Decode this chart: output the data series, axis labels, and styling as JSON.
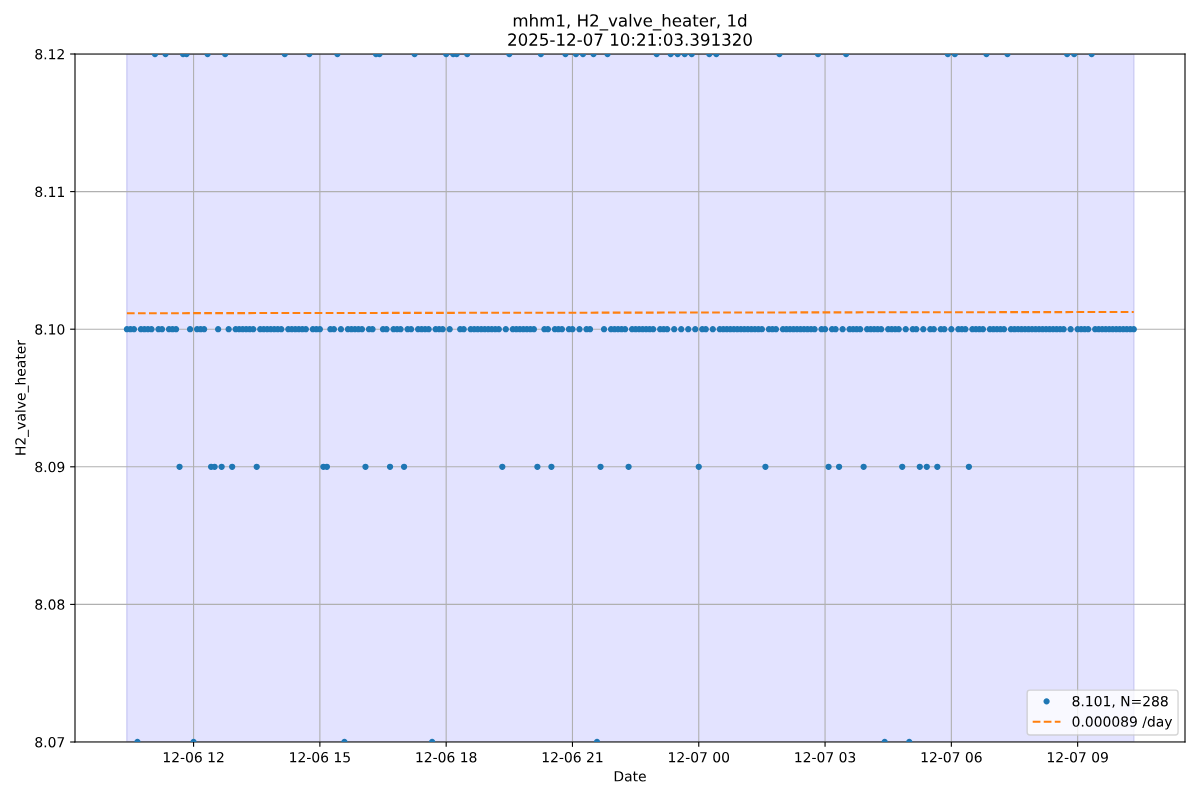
{
  "chart_data": {
    "type": "scatter",
    "title": "mhm1, H2_valve_heater, 1d\n2025-12-07 10:21:03.391320",
    "xlabel": "Date",
    "ylabel": "H2_valve_heater",
    "xlim": [
      "2025-12-06T09:11",
      "2025-12-07T11:33"
    ],
    "ylim": [
      8.07,
      8.12
    ],
    "xticks": [
      {
        "value": "2025-12-06T12:00",
        "label": "12-06 12"
      },
      {
        "value": "2025-12-06T15:00",
        "label": "12-06 15"
      },
      {
        "value": "2025-12-06T18:00",
        "label": "12-06 18"
      },
      {
        "value": "2025-12-06T21:00",
        "label": "12-06 21"
      },
      {
        "value": "2025-12-07T00:00",
        "label": "12-07 00"
      },
      {
        "value": "2025-12-07T03:00",
        "label": "12-07 03"
      },
      {
        "value": "2025-12-07T06:00",
        "label": "12-07 06"
      },
      {
        "value": "2025-12-07T09:00",
        "label": "12-07 09"
      }
    ],
    "yticks": [
      {
        "value": 8.07,
        "label": "8.07"
      },
      {
        "value": 8.08,
        "label": "8.08"
      },
      {
        "value": 8.09,
        "label": "8.09"
      },
      {
        "value": 8.1,
        "label": "8.10"
      },
      {
        "value": 8.11,
        "label": "8.11"
      },
      {
        "value": 8.12,
        "label": "8.12"
      }
    ],
    "grid": true,
    "legend": "bottom right",
    "bands": [
      {
        "axis": "x",
        "from": "2025-12-06T10:25",
        "to": "2025-12-07T10:20",
        "color": "#e3e3ff"
      }
    ],
    "x": [
      "2025-12-06T10:25",
      "2025-12-06T10:30",
      "2025-12-06T10:35",
      "2025-12-06T10:40",
      "2025-12-06T10:45",
      "2025-12-06T10:50",
      "2025-12-06T10:55",
      "2025-12-06T11:00",
      "2025-12-06T11:05",
      "2025-12-06T11:10",
      "2025-12-06T11:15",
      "2025-12-06T11:20",
      "2025-12-06T11:25",
      "2025-12-06T11:30",
      "2025-12-06T11:35",
      "2025-12-06T11:40",
      "2025-12-06T11:45",
      "2025-12-06T11:50",
      "2025-12-06T11:55",
      "2025-12-06T12:00",
      "2025-12-06T12:05",
      "2025-12-06T12:10",
      "2025-12-06T12:15",
      "2025-12-06T12:20",
      "2025-12-06T12:25",
      "2025-12-06T12:30",
      "2025-12-06T12:35",
      "2025-12-06T12:40",
      "2025-12-06T12:45",
      "2025-12-06T12:50",
      "2025-12-06T12:55",
      "2025-12-06T13:00",
      "2025-12-06T13:05",
      "2025-12-06T13:10",
      "2025-12-06T13:15",
      "2025-12-06T13:20",
      "2025-12-06T13:25",
      "2025-12-06T13:30",
      "2025-12-06T13:35",
      "2025-12-06T13:40",
      "2025-12-06T13:45",
      "2025-12-06T13:50",
      "2025-12-06T13:55",
      "2025-12-06T14:00",
      "2025-12-06T14:05",
      "2025-12-06T14:10",
      "2025-12-06T14:15",
      "2025-12-06T14:20",
      "2025-12-06T14:25",
      "2025-12-06T14:30",
      "2025-12-06T14:35",
      "2025-12-06T14:40",
      "2025-12-06T14:45",
      "2025-12-06T14:50",
      "2025-12-06T14:55",
      "2025-12-06T15:00",
      "2025-12-06T15:05",
      "2025-12-06T15:10",
      "2025-12-06T15:15",
      "2025-12-06T15:20",
      "2025-12-06T15:25",
      "2025-12-06T15:30",
      "2025-12-06T15:35",
      "2025-12-06T15:40",
      "2025-12-06T15:45",
      "2025-12-06T15:50",
      "2025-12-06T15:55",
      "2025-12-06T16:00",
      "2025-12-06T16:05",
      "2025-12-06T16:10",
      "2025-12-06T16:15",
      "2025-12-06T16:20",
      "2025-12-06T16:25",
      "2025-12-06T16:30",
      "2025-12-06T16:35",
      "2025-12-06T16:40",
      "2025-12-06T16:45",
      "2025-12-06T16:50",
      "2025-12-06T16:55",
      "2025-12-06T17:00",
      "2025-12-06T17:05",
      "2025-12-06T17:10",
      "2025-12-06T17:15",
      "2025-12-06T17:20",
      "2025-12-06T17:25",
      "2025-12-06T17:30",
      "2025-12-06T17:35",
      "2025-12-06T17:40",
      "2025-12-06T17:45",
      "2025-12-06T17:50",
      "2025-12-06T17:55",
      "2025-12-06T18:00",
      "2025-12-06T18:05",
      "2025-12-06T18:10",
      "2025-12-06T18:15",
      "2025-12-06T18:20",
      "2025-12-06T18:25",
      "2025-12-06T18:30",
      "2025-12-06T18:35",
      "2025-12-06T18:40",
      "2025-12-06T18:45",
      "2025-12-06T18:50",
      "2025-12-06T18:55",
      "2025-12-06T19:00",
      "2025-12-06T19:05",
      "2025-12-06T19:10",
      "2025-12-06T19:15",
      "2025-12-06T19:20",
      "2025-12-06T19:25",
      "2025-12-06T19:30",
      "2025-12-06T19:35",
      "2025-12-06T19:40",
      "2025-12-06T19:45",
      "2025-12-06T19:50",
      "2025-12-06T19:55",
      "2025-12-06T20:00",
      "2025-12-06T20:05",
      "2025-12-06T20:10",
      "2025-12-06T20:15",
      "2025-12-06T20:20",
      "2025-12-06T20:25",
      "2025-12-06T20:30",
      "2025-12-06T20:35",
      "2025-12-06T20:40",
      "2025-12-06T20:45",
      "2025-12-06T20:50",
      "2025-12-06T20:55",
      "2025-12-06T21:00",
      "2025-12-06T21:05",
      "2025-12-06T21:10",
      "2025-12-06T21:15",
      "2025-12-06T21:20",
      "2025-12-06T21:25",
      "2025-12-06T21:30",
      "2025-12-06T21:35",
      "2025-12-06T21:40",
      "2025-12-06T21:45",
      "2025-12-06T21:50",
      "2025-12-06T21:55",
      "2025-12-06T22:00",
      "2025-12-06T22:05",
      "2025-12-06T22:10",
      "2025-12-06T22:15",
      "2025-12-06T22:20",
      "2025-12-06T22:25",
      "2025-12-06T22:30",
      "2025-12-06T22:35",
      "2025-12-06T22:40",
      "2025-12-06T22:45",
      "2025-12-06T22:50",
      "2025-12-06T22:55",
      "2025-12-06T23:00",
      "2025-12-06T23:05",
      "2025-12-06T23:10",
      "2025-12-06T23:15",
      "2025-12-06T23:20",
      "2025-12-06T23:25",
      "2025-12-06T23:30",
      "2025-12-06T23:35",
      "2025-12-06T23:40",
      "2025-12-06T23:45",
      "2025-12-06T23:50",
      "2025-12-06T23:55",
      "2025-12-07T00:00",
      "2025-12-07T00:05",
      "2025-12-07T00:10",
      "2025-12-07T00:15",
      "2025-12-07T00:20",
      "2025-12-07T00:25",
      "2025-12-07T00:30",
      "2025-12-07T00:35",
      "2025-12-07T00:40",
      "2025-12-07T00:45",
      "2025-12-07T00:50",
      "2025-12-07T00:55",
      "2025-12-07T01:00",
      "2025-12-07T01:05",
      "2025-12-07T01:10",
      "2025-12-07T01:15",
      "2025-12-07T01:20",
      "2025-12-07T01:25",
      "2025-12-07T01:30",
      "2025-12-07T01:35",
      "2025-12-07T01:40",
      "2025-12-07T01:45",
      "2025-12-07T01:50",
      "2025-12-07T01:55",
      "2025-12-07T02:00",
      "2025-12-07T02:05",
      "2025-12-07T02:10",
      "2025-12-07T02:15",
      "2025-12-07T02:20",
      "2025-12-07T02:25",
      "2025-12-07T02:30",
      "2025-12-07T02:35",
      "2025-12-07T02:40",
      "2025-12-07T02:45",
      "2025-12-07T02:50",
      "2025-12-07T02:55",
      "2025-12-07T03:00",
      "2025-12-07T03:05",
      "2025-12-07T03:10",
      "2025-12-07T03:15",
      "2025-12-07T03:20",
      "2025-12-07T03:25",
      "2025-12-07T03:30",
      "2025-12-07T03:35",
      "2025-12-07T03:40",
      "2025-12-07T03:45",
      "2025-12-07T03:50",
      "2025-12-07T03:55",
      "2025-12-07T04:00",
      "2025-12-07T04:05",
      "2025-12-07T04:10",
      "2025-12-07T04:15",
      "2025-12-07T04:20",
      "2025-12-07T04:25",
      "2025-12-07T04:30",
      "2025-12-07T04:35",
      "2025-12-07T04:40",
      "2025-12-07T04:45",
      "2025-12-07T04:50",
      "2025-12-07T04:55",
      "2025-12-07T05:00",
      "2025-12-07T05:05",
      "2025-12-07T05:10",
      "2025-12-07T05:15",
      "2025-12-07T05:20",
      "2025-12-07T05:25",
      "2025-12-07T05:30",
      "2025-12-07T05:35",
      "2025-12-07T05:40",
      "2025-12-07T05:45",
      "2025-12-07T05:50",
      "2025-12-07T05:55",
      "2025-12-07T06:00",
      "2025-12-07T06:05",
      "2025-12-07T06:10",
      "2025-12-07T06:15",
      "2025-12-07T06:20",
      "2025-12-07T06:25",
      "2025-12-07T06:30",
      "2025-12-07T06:35",
      "2025-12-07T06:40",
      "2025-12-07T06:45",
      "2025-12-07T06:50",
      "2025-12-07T06:55",
      "2025-12-07T07:00",
      "2025-12-07T07:05",
      "2025-12-07T07:10",
      "2025-12-07T07:15",
      "2025-12-07T07:20",
      "2025-12-07T07:25",
      "2025-12-07T07:30",
      "2025-12-07T07:35",
      "2025-12-07T07:40",
      "2025-12-07T07:45",
      "2025-12-07T07:50",
      "2025-12-07T07:55",
      "2025-12-07T08:00",
      "2025-12-07T08:05",
      "2025-12-07T08:10",
      "2025-12-07T08:15",
      "2025-12-07T08:20",
      "2025-12-07T08:25",
      "2025-12-07T08:30",
      "2025-12-07T08:35",
      "2025-12-07T08:40",
      "2025-12-07T08:45",
      "2025-12-07T08:50",
      "2025-12-07T08:55",
      "2025-12-07T09:00",
      "2025-12-07T09:05",
      "2025-12-07T09:10",
      "2025-12-07T09:15",
      "2025-12-07T09:20",
      "2025-12-07T09:25",
      "2025-12-07T09:30",
      "2025-12-07T09:35",
      "2025-12-07T09:40",
      "2025-12-07T09:45",
      "2025-12-07T09:50",
      "2025-12-07T09:55",
      "2025-12-07T10:00",
      "2025-12-07T10:05",
      "2025-12-07T10:10",
      "2025-12-07T10:15",
      "2025-12-07T10:20"
    ],
    "series": [
      {
        "name": "8.101, N=288",
        "color": "#1f77b4",
        "marker": "circle",
        "values": [
          8.1,
          8.1,
          8.1,
          8.07,
          8.1,
          8.1,
          8.1,
          8.1,
          8.12,
          8.1,
          8.1,
          8.12,
          8.1,
          8.1,
          8.1,
          8.09,
          8.12,
          8.12,
          8.1,
          8.07,
          8.1,
          8.1,
          8.1,
          8.12,
          8.09,
          8.09,
          8.1,
          8.09,
          8.12,
          8.1,
          8.09,
          8.1,
          8.1,
          8.1,
          8.1,
          8.1,
          8.1,
          8.09,
          8.1,
          8.1,
          8.1,
          8.1,
          8.1,
          8.1,
          8.1,
          8.12,
          8.1,
          8.1,
          8.1,
          8.1,
          8.1,
          8.1,
          8.12,
          8.1,
          8.1,
          8.1,
          8.09,
          8.09,
          8.1,
          8.1,
          8.12,
          8.1,
          8.07,
          8.1,
          8.1,
          8.1,
          8.1,
          8.1,
          8.09,
          8.1,
          8.1,
          8.12,
          8.12,
          8.1,
          8.1,
          8.09,
          8.1,
          8.1,
          8.1,
          8.09,
          8.1,
          8.1,
          8.12,
          8.1,
          8.1,
          8.1,
          8.1,
          8.07,
          8.1,
          8.1,
          8.1,
          8.12,
          8.1,
          8.12,
          8.12,
          8.1,
          8.1,
          8.12,
          8.1,
          8.1,
          8.1,
          8.1,
          8.1,
          8.1,
          8.1,
          8.1,
          8.1,
          8.09,
          8.1,
          8.12,
          8.1,
          8.1,
          8.1,
          8.1,
          8.1,
          8.1,
          8.1,
          8.09,
          8.12,
          8.1,
          8.1,
          8.09,
          8.1,
          8.1,
          8.1,
          8.12,
          8.1,
          8.1,
          8.12,
          8.1,
          8.12,
          8.1,
          8.1,
          8.12,
          8.07,
          8.09,
          8.1,
          8.12,
          8.1,
          8.1,
          8.1,
          8.1,
          8.1,
          8.09,
          8.1,
          8.1,
          8.1,
          8.1,
          8.1,
          8.1,
          8.1,
          8.12,
          8.1,
          8.1,
          8.1,
          8.12,
          8.1,
          8.12,
          8.1,
          8.12,
          8.1,
          8.12,
          8.1,
          8.09,
          8.1,
          8.1,
          8.12,
          8.1,
          8.12,
          8.1,
          8.1,
          8.1,
          8.1,
          8.1,
          8.1,
          8.1,
          8.1,
          8.1,
          8.1,
          8.1,
          8.1,
          8.1,
          8.09,
          8.1,
          8.1,
          8.1,
          8.12,
          8.1,
          8.1,
          8.1,
          8.1,
          8.1,
          8.1,
          8.1,
          8.1,
          8.1,
          8.1,
          8.12,
          8.1,
          8.1,
          8.09,
          8.1,
          8.1,
          8.09,
          8.1,
          8.12,
          8.1,
          8.1,
          8.1,
          8.1,
          8.09,
          8.1,
          8.1,
          8.1,
          8.1,
          8.1,
          8.07,
          8.1,
          8.1,
          8.1,
          8.1,
          8.09,
          8.1,
          8.07,
          8.1,
          8.1,
          8.09,
          8.1,
          8.09,
          8.1,
          8.1,
          8.09,
          8.1,
          8.1,
          8.12,
          8.1,
          8.12,
          8.1,
          8.1,
          8.1,
          8.09,
          8.1,
          8.1,
          8.1,
          8.1,
          8.12,
          8.1,
          8.1,
          8.1,
          8.1,
          8.1,
          8.12,
          8.1,
          8.1,
          8.1,
          8.1,
          8.1,
          8.1,
          8.1,
          8.1,
          8.1,
          8.1,
          8.1,
          8.1,
          8.1,
          8.1,
          8.1,
          8.1,
          8.12,
          8.1,
          8.12,
          8.1,
          8.1,
          8.1,
          8.1,
          8.12,
          8.1,
          8.1,
          8.1,
          8.1,
          8.1,
          8.1,
          8.1,
          8.1,
          8.1,
          8.1,
          8.1,
          8.1
        ]
      },
      {
        "name": "0.000089 /day",
        "type": "line",
        "color": "#ff7f0e",
        "line_style": "dashed",
        "marker": "none",
        "x": [
          "2025-12-06T10:25",
          "2025-12-07T10:20"
        ],
        "values": [
          8.10116,
          8.10125
        ]
      }
    ]
  }
}
